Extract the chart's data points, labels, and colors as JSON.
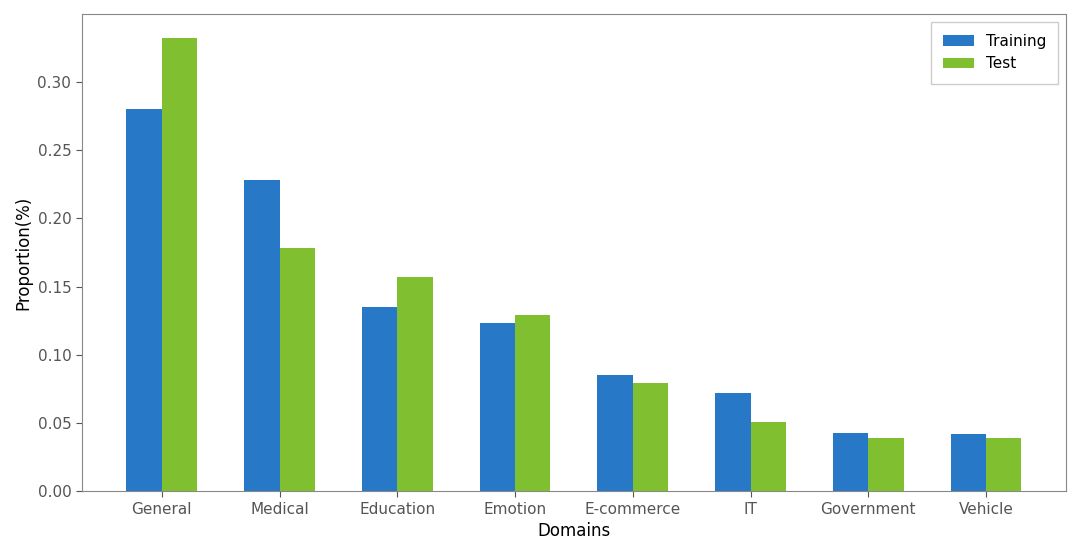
{
  "categories": [
    "General",
    "Medical",
    "Education",
    "Emotion",
    "E-commerce",
    "IT",
    "Government",
    "Vehicle"
  ],
  "training": [
    0.28,
    0.228,
    0.135,
    0.123,
    0.085,
    0.072,
    0.043,
    0.042
  ],
  "test": [
    0.332,
    0.178,
    0.157,
    0.129,
    0.079,
    0.051,
    0.039,
    0.039
  ],
  "bar_color_training": "#2878c8",
  "bar_color_test": "#80c030",
  "xlabel": "Domains",
  "ylabel": "Proportion(%)",
  "ylim": [
    0,
    0.35
  ],
  "yticks": [
    0.0,
    0.05,
    0.1,
    0.15,
    0.2,
    0.25,
    0.3
  ],
  "legend_labels": [
    "Training",
    "Test"
  ],
  "legend_loc": "upper right",
  "bar_width": 0.3,
  "background_color": "#ffffff",
  "spine_color": "#888888",
  "tick_color": "#555555"
}
